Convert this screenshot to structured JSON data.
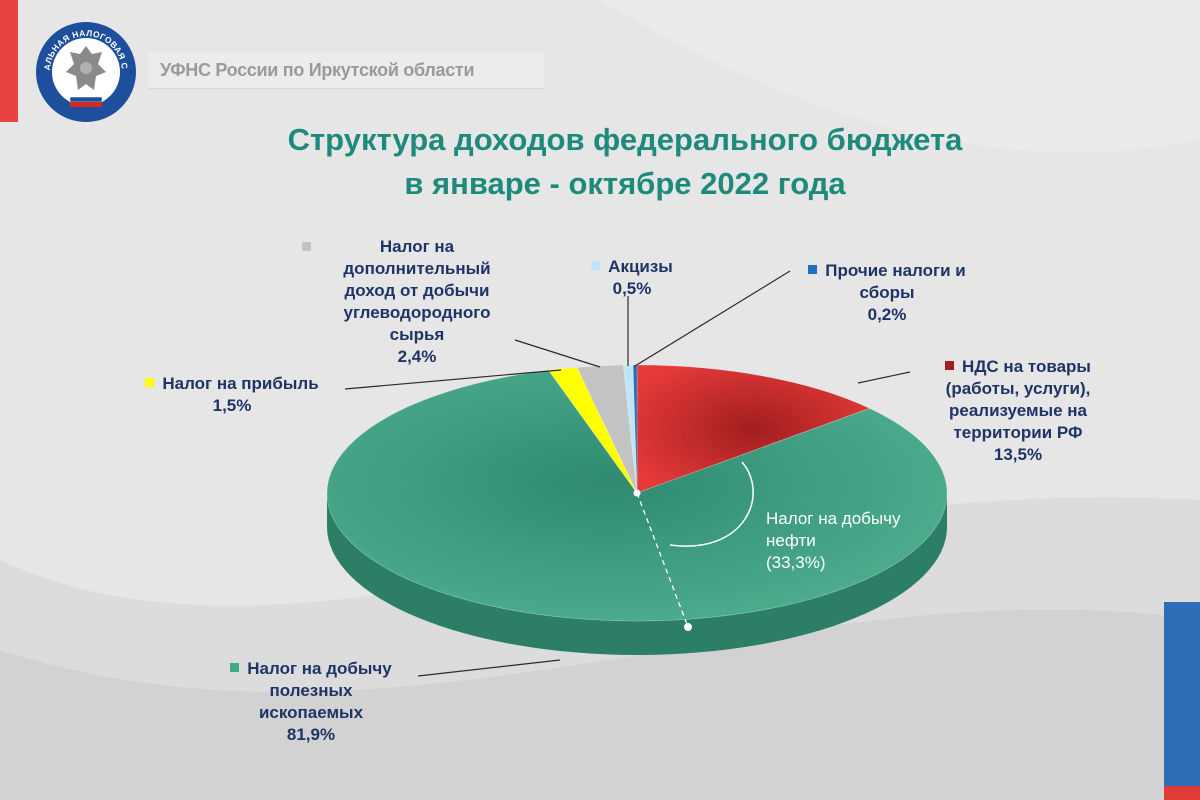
{
  "header": {
    "org": "УФНС России по Иркутской области"
  },
  "logo": {
    "text": "ФЕДЕРАЛЬНАЯ НАЛОГОВАЯ СЛУЖБА",
    "icon": "fns-emblem-icon"
  },
  "title": {
    "line1": "Структура доходов федерального бюджета",
    "line2": "в январе - октябре 2022 года"
  },
  "colors": {
    "title": "#1e8a7c",
    "labels": "#1f3466",
    "green": "#45a88c",
    "red": "#e63a3a",
    "yellow": "#ffff00",
    "gray": "#c3c3c3",
    "lightblue": "#bfe6f7",
    "blue": "#1f6fbf"
  },
  "chart_data": {
    "type": "pie",
    "title": "Структура доходов федерального бюджета в январе - октябре 2022 года",
    "slices": [
      {
        "label": "НДС на товары (работы, услуги), реализуемые на территории РФ",
        "value": 13.5,
        "display": "13,5%",
        "color": "#e63a3a"
      },
      {
        "label": "Налог на добычу полезных ископаемых",
        "value": 81.9,
        "display": "81,9%",
        "color": "#45a88c"
      },
      {
        "label": "Налог на прибыль",
        "value": 1.5,
        "display": "1,5%",
        "color": "#ffff00"
      },
      {
        "label": "Налог на дополнительный доход от добычи углеводородного сырья",
        "value": 2.4,
        "display": "2,4%",
        "color": "#c3c3c3"
      },
      {
        "label": "Акцизы",
        "value": 0.5,
        "display": "0,5%",
        "color": "#bfe6f7"
      },
      {
        "label": "Прочие налоги и сборы",
        "value": 0.2,
        "display": "0,2%",
        "color": "#1f6fbf"
      }
    ],
    "annotation": {
      "lines": [
        "Налог на добычу",
        "нефти",
        "(33,3%)"
      ],
      "value": 33.3
    }
  },
  "labels": {
    "ndd": {
      "lines": [
        "Налог на",
        "дополнительный",
        "доход от добычи",
        "углеводородного",
        "сырья"
      ],
      "value": "2,4%"
    },
    "akcizy": {
      "name": "Акцизы",
      "value": "0,5%"
    },
    "prochie": {
      "lines": [
        "Прочие налоги и",
        "сборы"
      ],
      "value": "0,2%"
    },
    "nds": {
      "lines": [
        "НДС на товары",
        "(работы,  услуги),",
        "реализуемые на",
        "территории РФ"
      ],
      "value": "13,5%"
    },
    "pribyl": {
      "name": "Налог на прибыль",
      "value": "1,5%"
    },
    "ndpi": {
      "lines": [
        "Налог на добычу",
        "полезных",
        "ископаемых"
      ],
      "value": "81,9%"
    }
  }
}
